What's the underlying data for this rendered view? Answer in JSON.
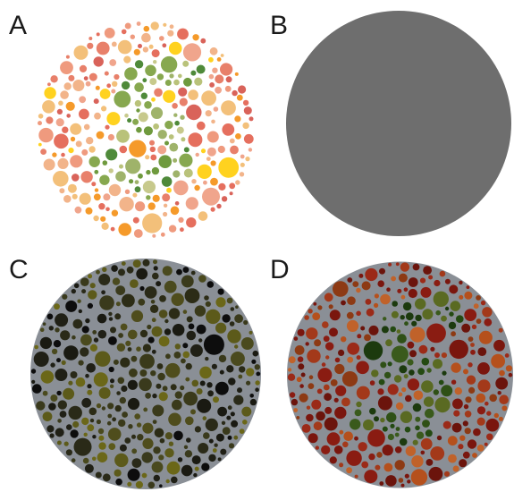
{
  "panels": [
    {
      "label": "A",
      "type": "dots",
      "seed": 11,
      "background": [
        "#e8806a",
        "#ef9a7e",
        "#f2b48a",
        "#e56f5e",
        "#f3c07a",
        "#ffd21f",
        "#f59a2a",
        "#d9635a",
        "#f0a58c"
      ],
      "figure": [
        "#9fb36a",
        "#6f9a3e",
        "#b9c27a",
        "#4f8a3a",
        "#c7c98c",
        "#87a84f"
      ],
      "edge": "none"
    },
    {
      "label": "B",
      "type": "solid",
      "color": "#6e6e6e"
    },
    {
      "label": "C",
      "type": "dots",
      "seed": 23,
      "background": [
        "#0d0d0d",
        "#1a1a12",
        "#2a2a18",
        "#3a3a1c",
        "#4a4a1e",
        "#5c5a1a",
        "#6b6718",
        "#202016"
      ],
      "figure": [
        "#3a3a1a",
        "#4f4d1c",
        "#2c2c16"
      ],
      "edge": "#8a8f96"
    },
    {
      "label": "D",
      "type": "dots",
      "seed": 37,
      "background": [
        "#8a1c12",
        "#9b2a18",
        "#7a160e",
        "#a3391a",
        "#b5501c",
        "#8d3a14",
        "#c0622a",
        "#6b140c"
      ],
      "figure": [
        "#244a12",
        "#3a5a1c",
        "#1c3a0e",
        "#5a6a22",
        "#2f5016"
      ],
      "edge": "#8a8f96"
    }
  ]
}
